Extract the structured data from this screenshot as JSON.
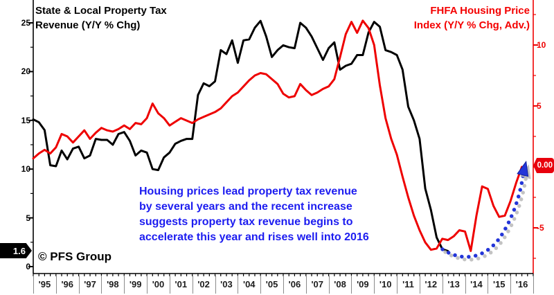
{
  "titles": {
    "left": "State & Local Property Tax\nRevenue (Y/Y % Chg)",
    "right": "FHFA Housing Price\nIndex (Y/Y % Chg, Adv.)"
  },
  "annotation": "Housing prices lead property tax revenue\nby several years and the recent increase\nsuggests property tax revenue begins to\naccelerate this year and rises well into 2016",
  "watermark": "© PFS Group",
  "badges": {
    "left_value": "1.6",
    "right_value": "0.00"
  },
  "colors": {
    "black_series": "#000000",
    "red_series": "#ee0000",
    "red_title": "#f40000",
    "blue_annotation": "#1c1cf0",
    "blue_arrow": "#2335d8",
    "arrow_shadow": "#b4b4b4",
    "badge_left_bg": "#000000",
    "badge_right_bg": "#e8000d",
    "axis_gray": "#8a8a8a"
  },
  "chart_data": {
    "type": "line",
    "title": "State & Local Property Tax Revenue vs FHFA Housing Price Index",
    "x_start": 1995.0,
    "x_step": 0.25,
    "x_tick_labels": [
      "'95",
      "'96",
      "'97",
      "'98",
      "'99",
      "'00",
      "'01",
      "'02",
      "'03",
      "'04",
      "'05",
      "'06",
      "'07",
      "'08",
      "'09",
      "'10",
      "'11",
      "'12",
      "'13",
      "'14",
      "'15",
      "'16"
    ],
    "left_axis": {
      "label_ticks": [
        25,
        20,
        15,
        10,
        5,
        0
      ],
      "minor_step": 2.5,
      "range": [
        0,
        28
      ],
      "units": "% y/y"
    },
    "right_axis": {
      "label_ticks": [
        10,
        5,
        -5
      ],
      "minor_step": 2.5,
      "range": [
        -8.2,
        12.3
      ],
      "units": "% y/y"
    },
    "grid": false,
    "legend_position": "titles-top-corners",
    "series": [
      {
        "name": "State & Local Property Tax Revenue (Y/Y % Chg)",
        "axis": "left",
        "color": "#000000",
        "values": [
          15.1,
          14.8,
          14.0,
          10.4,
          10.3,
          11.9,
          11.0,
          12.1,
          12.3,
          11.1,
          11.4,
          13.1,
          13.0,
          13.0,
          12.5,
          13.6,
          13.8,
          12.9,
          11.4,
          11.9,
          11.7,
          10.0,
          9.9,
          11.2,
          11.7,
          12.6,
          12.9,
          13.1,
          13.1,
          17.6,
          18.8,
          18.5,
          19.0,
          22.2,
          21.8,
          23.2,
          20.9,
          23.2,
          23.3,
          24.5,
          25.2,
          23.6,
          21.5,
          22.2,
          22.7,
          22.5,
          22.4,
          25.0,
          24.5,
          23.6,
          22.4,
          21.2,
          22.4,
          23.0,
          20.2,
          20.6,
          20.8,
          21.7,
          21.7,
          24.0,
          25.1,
          24.6,
          22.2,
          22.0,
          21.7,
          20.2,
          16.4,
          15.0,
          13.1,
          8.0,
          5.8,
          3.0,
          1.8,
          1.6
        ]
      },
      {
        "name": "FHFA Housing Price Index (Y/Y % Chg, Adv.)",
        "axis": "right",
        "color": "#ee0000",
        "values": [
          0.7,
          1.1,
          1.4,
          1.1,
          1.6,
          2.7,
          2.5,
          2.0,
          2.5,
          3.0,
          2.3,
          2.8,
          3.2,
          3.0,
          2.9,
          3.1,
          3.4,
          3.1,
          3.6,
          3.5,
          4.0,
          5.2,
          4.4,
          4.0,
          3.4,
          3.7,
          4.0,
          3.8,
          3.6,
          3.9,
          4.1,
          4.3,
          4.5,
          4.8,
          5.3,
          5.8,
          6.1,
          6.6,
          7.1,
          7.5,
          7.7,
          7.6,
          7.2,
          6.8,
          6.0,
          5.7,
          5.8,
          6.8,
          6.3,
          5.9,
          6.1,
          6.4,
          6.6,
          7.2,
          9.0,
          10.9,
          11.9,
          11.0,
          12.0,
          11.4,
          10.0,
          6.7,
          4.0,
          2.3,
          1.0,
          -0.8,
          -2.5,
          -4.0,
          -5.2,
          -6.2,
          -6.8,
          -6.7,
          -5.9,
          -6.0,
          -5.7,
          -5.2,
          -5.3,
          -6.9,
          -4.0,
          -1.6,
          -1.8,
          -3.2,
          -4.1,
          -4.0,
          -2.8,
          -1.3,
          0.0
        ]
      }
    ],
    "latest_values": {
      "black": 1.6,
      "red": 0.0
    },
    "trend_arrow": {
      "description": "blue dotted curve from 2013 trough up to 0.00 on right axis",
      "from_x": 2013.0,
      "to_x": 2016.5
    }
  }
}
